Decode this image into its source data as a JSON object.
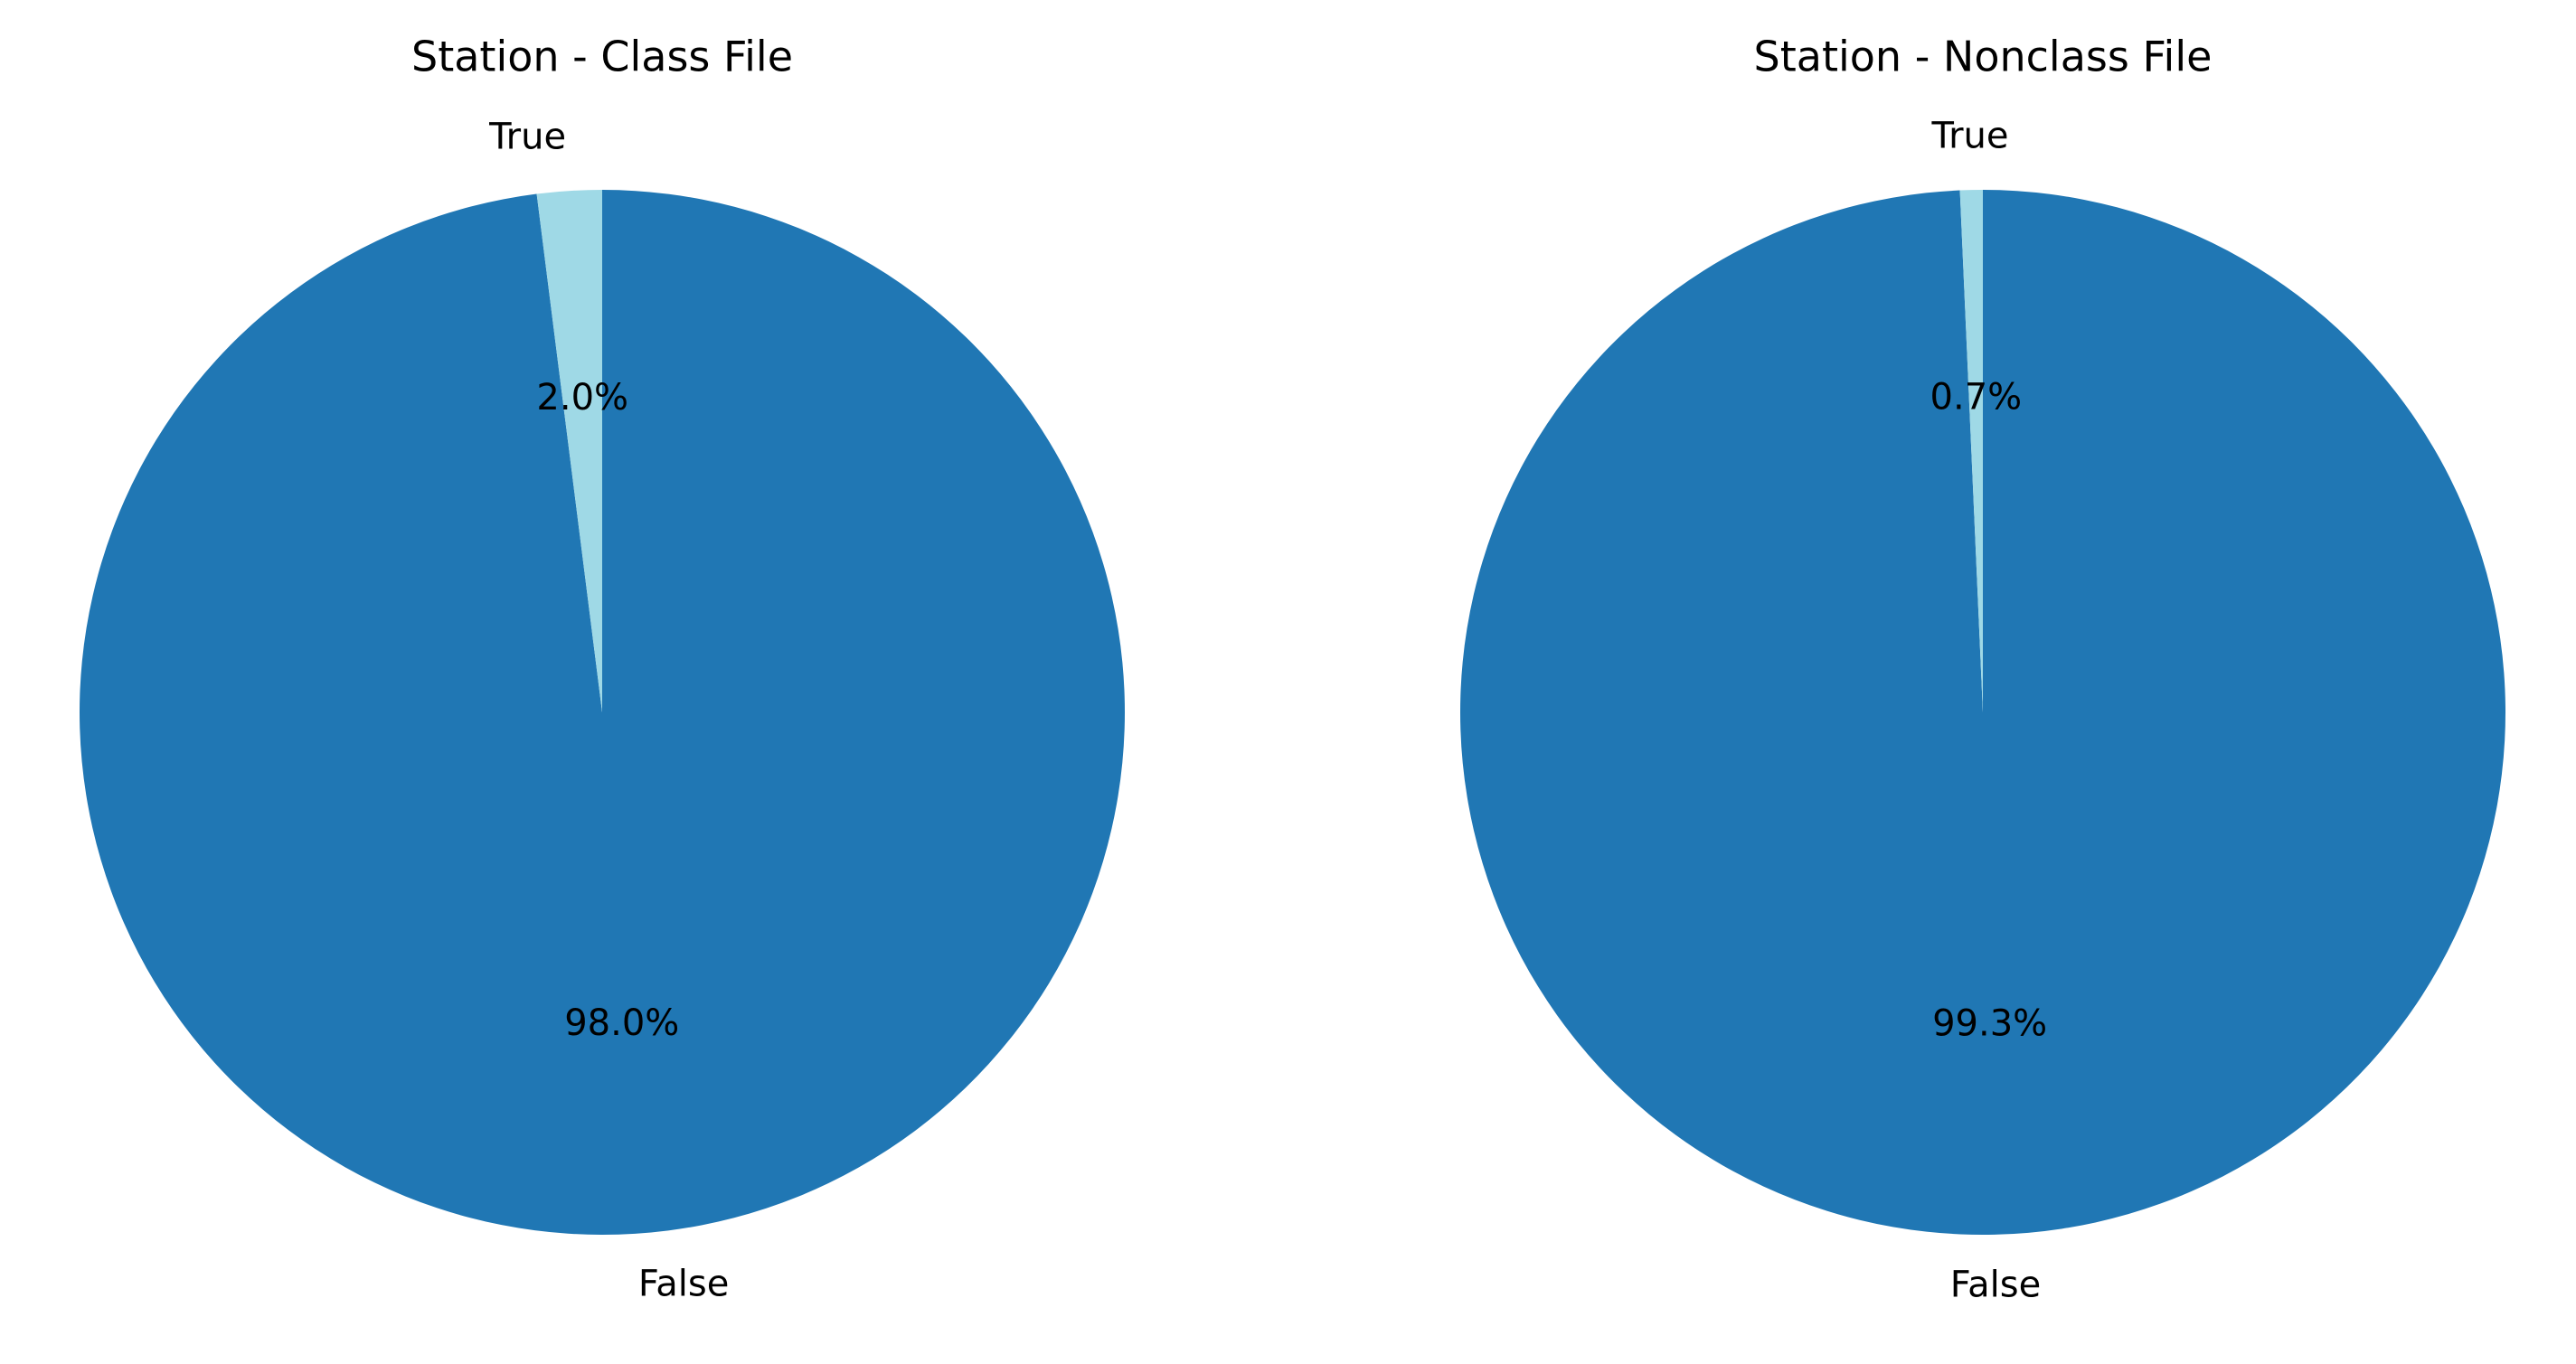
{
  "chart_data": [
    {
      "type": "pie",
      "title": "Station - Class File",
      "slices": [
        {
          "label": "False",
          "value": 98.0,
          "pct_label": "98.0%",
          "color": "#2077b4"
        },
        {
          "label": "True",
          "value": 2.0,
          "pct_label": "2.0%",
          "color": "#9fd9e6"
        }
      ],
      "legend": "none"
    },
    {
      "type": "pie",
      "title": "Station - Nonclass File",
      "slices": [
        {
          "label": "False",
          "value": 99.3,
          "pct_label": "99.3%",
          "color": "#2077b4"
        },
        {
          "label": "True",
          "value": 0.7,
          "pct_label": "0.7%",
          "color": "#9fd9e6"
        }
      ],
      "legend": "none"
    }
  ]
}
